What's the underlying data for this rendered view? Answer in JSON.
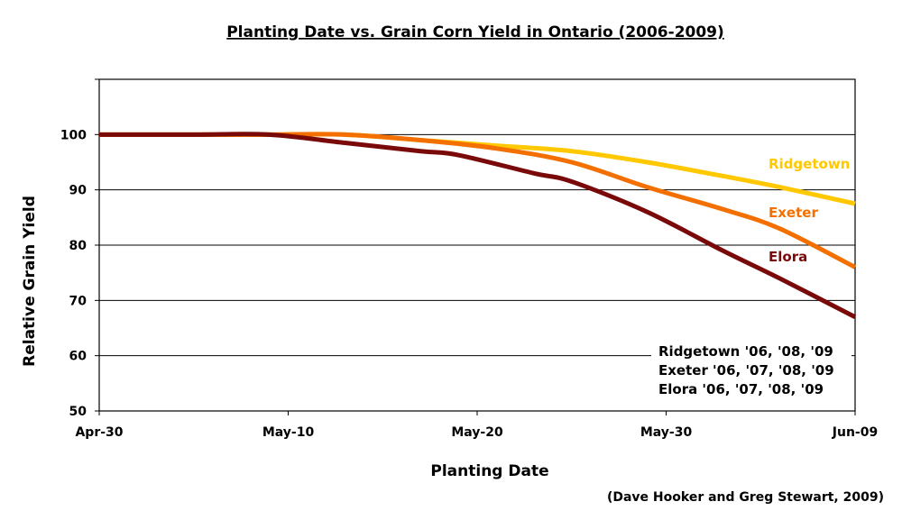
{
  "chart_data": {
    "type": "line",
    "title": "Planting Date vs. Grain Corn Yield in Ontario (2006-2009)",
    "xlabel": "Planting Date",
    "ylabel": "Relative Grain Yield",
    "x_tick_labels": [
      "Apr-30",
      "May-10",
      "May-20",
      "May-30",
      "Jun-09"
    ],
    "x_domain_days": [
      0,
      40
    ],
    "ylim": [
      50,
      110
    ],
    "y_ticks": [
      50,
      60,
      70,
      80,
      90,
      100
    ],
    "grid": "horizontal",
    "series": [
      {
        "name": "Ridgetown",
        "color": "#FFC800",
        "x": [
          "Apr-30",
          "May-05",
          "May-09",
          "May-13",
          "May-17",
          "May-21",
          "May-25",
          "May-29",
          "Jun-02",
          "Jun-05",
          "Jun-09"
        ],
        "values": [
          100,
          100,
          100,
          100,
          99,
          98,
          97,
          95,
          92.5,
          90.5,
          87.5
        ]
      },
      {
        "name": "Exeter",
        "color": "#F26F00",
        "x": [
          "Apr-30",
          "May-05",
          "May-09",
          "May-13",
          "May-17",
          "May-21",
          "May-25",
          "May-29",
          "Jun-02",
          "Jun-05",
          "Jun-09"
        ],
        "values": [
          100,
          100,
          100,
          100,
          99,
          97.5,
          95,
          90.5,
          86.5,
          83,
          76
        ]
      },
      {
        "name": "Elora",
        "color": "#7A0A0A",
        "x": [
          "Apr-30",
          "May-05",
          "May-09",
          "May-13",
          "May-17",
          "May-19",
          "May-23",
          "May-25",
          "May-29",
          "Jun-02",
          "Jun-05",
          "Jun-09"
        ],
        "values": [
          100,
          100,
          100,
          98.5,
          97,
          96.3,
          93,
          91.5,
          86,
          79,
          74,
          67
        ]
      }
    ],
    "annotation_lines": [
      "Ridgetown  '06, '08, '09",
      "Exeter  '06, '07, '08, '09",
      "Elora  '06, '07, '08, '09"
    ],
    "credit": "(Dave Hooker and Greg Stewart, 2009)"
  }
}
